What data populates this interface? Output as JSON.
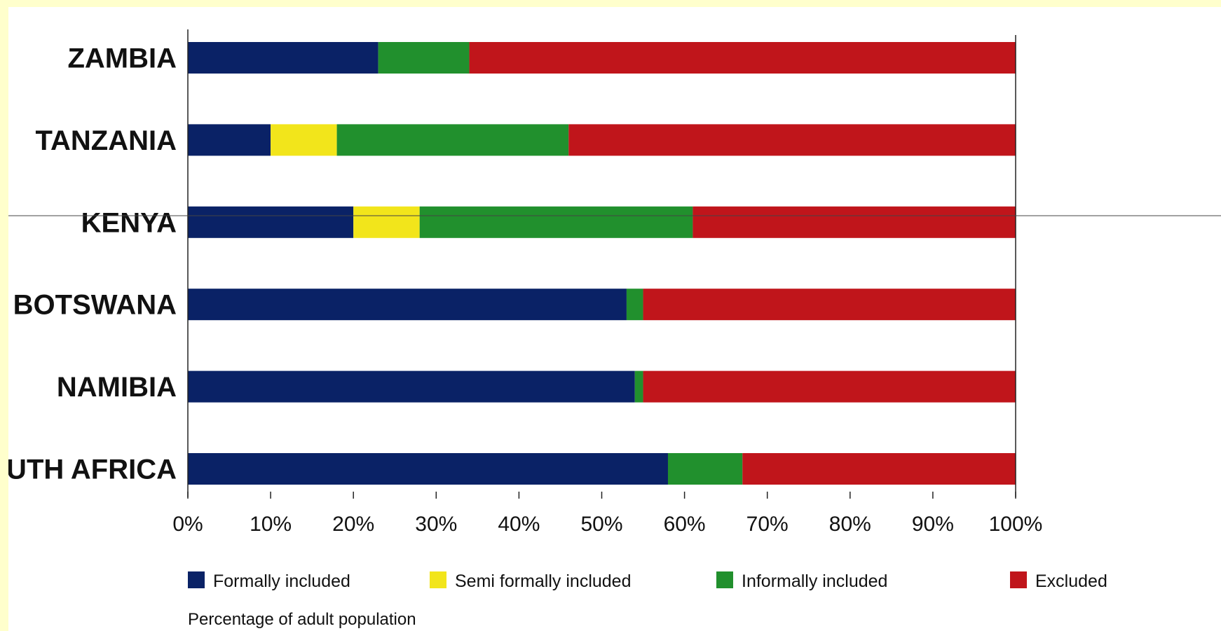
{
  "chart_data": {
    "type": "bar",
    "orientation": "horizontal",
    "stacked": true,
    "categories": [
      "ZAMBIA",
      "TANZANIA",
      "KENYA",
      "BOTSWANA",
      "NAMIBIA",
      "SOUTH AFRICA"
    ],
    "series": [
      {
        "name": "Formally included",
        "color": "#0a2266",
        "values": [
          23,
          10,
          20,
          53,
          54,
          58
        ]
      },
      {
        "name": "Semi formally included",
        "color": "#f2e51b",
        "values": [
          0,
          8,
          8,
          0,
          0,
          0
        ]
      },
      {
        "name": "Informally included",
        "color": "#21902d",
        "values": [
          11,
          28,
          33,
          2,
          1,
          9
        ]
      },
      {
        "name": "Excluded",
        "color": "#c0151b",
        "values": [
          66,
          54,
          39,
          45,
          45,
          33
        ]
      }
    ],
    "x_ticks": [
      "0%",
      "10%",
      "20%",
      "30%",
      "40%",
      "50%",
      "60%",
      "70%",
      "80%",
      "90%",
      "100%"
    ],
    "xlim": [
      0,
      100
    ],
    "legend_placement": "bottom",
    "note": "Percentage of adult population",
    "grid": false
  }
}
